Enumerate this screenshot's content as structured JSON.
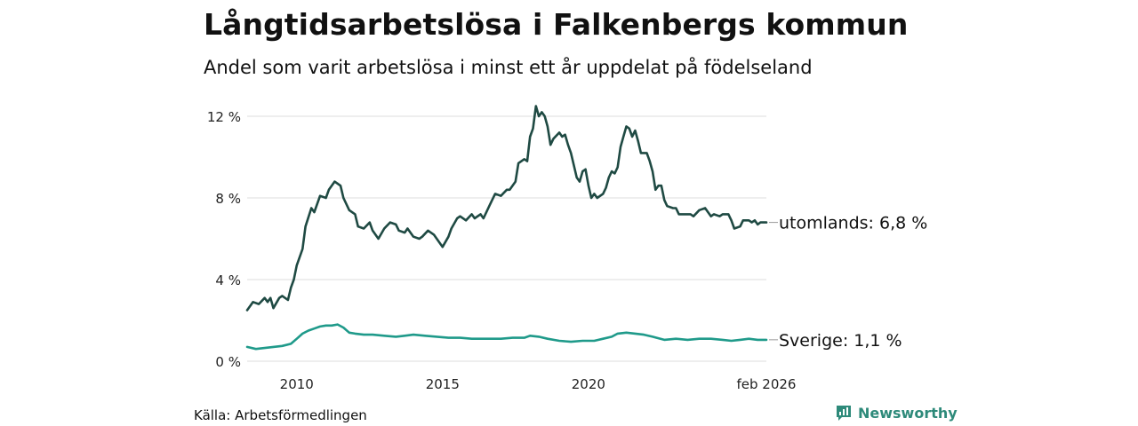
{
  "header": {
    "title": "Långtidsarbetslösa i Falkenbergs kommun",
    "subtitle": "Andel som varit arbetslösa i minst ett år uppdelat på födelseland"
  },
  "footer": {
    "source": "Källa: Arbetsförmedlingen",
    "brand": "Newsworthy"
  },
  "colors": {
    "utomlands": "#1f4a43",
    "sverige": "#1f9a8a",
    "grid": "#dddddd",
    "brand": "#2e8a7a"
  },
  "chart_data": {
    "type": "line",
    "title": "Långtidsarbetslösa i Falkenbergs kommun",
    "subtitle": "Andel som varit arbetslösa i minst ett år uppdelat på födelseland",
    "xlim": [
      2008.3,
      2026.1
    ],
    "ylim": [
      0,
      12
    ],
    "yticks": [
      {
        "value": 0,
        "label": "0 %"
      },
      {
        "value": 4,
        "label": "4 %"
      },
      {
        "value": 8,
        "label": "8 %"
      },
      {
        "value": 12,
        "label": "12 %"
      }
    ],
    "xticks": [
      {
        "value": 2010,
        "label": "2010"
      },
      {
        "value": 2015,
        "label": "2015"
      },
      {
        "value": 2020,
        "label": "2020"
      },
      {
        "value": 2026.1,
        "label": "feb 2026"
      }
    ],
    "grid": true,
    "series": [
      {
        "name": "utomlands",
        "end_label": "utomlands: 6,8 %",
        "points": [
          [
            2008.3,
            2.5
          ],
          [
            2008.5,
            2.9
          ],
          [
            2008.7,
            2.8
          ],
          [
            2008.9,
            3.1
          ],
          [
            2009.0,
            2.9
          ],
          [
            2009.1,
            3.1
          ],
          [
            2009.2,
            2.6
          ],
          [
            2009.4,
            3.1
          ],
          [
            2009.5,
            3.2
          ],
          [
            2009.7,
            3.0
          ],
          [
            2009.8,
            3.6
          ],
          [
            2009.9,
            4.0
          ],
          [
            2010.0,
            4.7
          ],
          [
            2010.2,
            5.5
          ],
          [
            2010.3,
            6.6
          ],
          [
            2010.5,
            7.5
          ],
          [
            2010.6,
            7.3
          ],
          [
            2010.8,
            8.1
          ],
          [
            2011.0,
            8.0
          ],
          [
            2011.1,
            8.4
          ],
          [
            2011.3,
            8.8
          ],
          [
            2011.5,
            8.6
          ],
          [
            2011.6,
            8.0
          ],
          [
            2011.8,
            7.4
          ],
          [
            2012.0,
            7.2
          ],
          [
            2012.1,
            6.6
          ],
          [
            2012.3,
            6.5
          ],
          [
            2012.5,
            6.8
          ],
          [
            2012.6,
            6.4
          ],
          [
            2012.8,
            6.0
          ],
          [
            2013.0,
            6.5
          ],
          [
            2013.2,
            6.8
          ],
          [
            2013.4,
            6.7
          ],
          [
            2013.5,
            6.4
          ],
          [
            2013.7,
            6.3
          ],
          [
            2013.8,
            6.5
          ],
          [
            2014.0,
            6.1
          ],
          [
            2014.2,
            6.0
          ],
          [
            2014.3,
            6.1
          ],
          [
            2014.5,
            6.4
          ],
          [
            2014.7,
            6.2
          ],
          [
            2014.9,
            5.8
          ],
          [
            2015.0,
            5.6
          ],
          [
            2015.2,
            6.1
          ],
          [
            2015.3,
            6.5
          ],
          [
            2015.5,
            7.0
          ],
          [
            2015.6,
            7.1
          ],
          [
            2015.8,
            6.9
          ],
          [
            2016.0,
            7.2
          ],
          [
            2016.1,
            7.0
          ],
          [
            2016.3,
            7.2
          ],
          [
            2016.4,
            7.0
          ],
          [
            2016.6,
            7.6
          ],
          [
            2016.8,
            8.2
          ],
          [
            2017.0,
            8.1
          ],
          [
            2017.2,
            8.4
          ],
          [
            2017.3,
            8.4
          ],
          [
            2017.5,
            8.8
          ],
          [
            2017.6,
            9.7
          ],
          [
            2017.8,
            9.9
          ],
          [
            2017.9,
            9.8
          ],
          [
            2018.0,
            11.0
          ],
          [
            2018.1,
            11.4
          ],
          [
            2018.2,
            12.5
          ],
          [
            2018.3,
            12.0
          ],
          [
            2018.4,
            12.2
          ],
          [
            2018.5,
            12.0
          ],
          [
            2018.6,
            11.5
          ],
          [
            2018.7,
            10.6
          ],
          [
            2018.8,
            10.9
          ],
          [
            2019.0,
            11.2
          ],
          [
            2019.1,
            11.0
          ],
          [
            2019.2,
            11.1
          ],
          [
            2019.3,
            10.6
          ],
          [
            2019.4,
            10.2
          ],
          [
            2019.6,
            9.0
          ],
          [
            2019.7,
            8.8
          ],
          [
            2019.8,
            9.3
          ],
          [
            2019.9,
            9.4
          ],
          [
            2020.0,
            8.6
          ],
          [
            2020.1,
            8.0
          ],
          [
            2020.2,
            8.2
          ],
          [
            2020.3,
            8.0
          ],
          [
            2020.5,
            8.2
          ],
          [
            2020.6,
            8.5
          ],
          [
            2020.7,
            9.0
          ],
          [
            2020.8,
            9.3
          ],
          [
            2020.9,
            9.2
          ],
          [
            2021.0,
            9.5
          ],
          [
            2021.1,
            10.5
          ],
          [
            2021.2,
            11.0
          ],
          [
            2021.3,
            11.5
          ],
          [
            2021.4,
            11.4
          ],
          [
            2021.5,
            11.0
          ],
          [
            2021.6,
            11.3
          ],
          [
            2021.7,
            10.8
          ],
          [
            2021.8,
            10.2
          ],
          [
            2022.0,
            10.2
          ],
          [
            2022.1,
            9.8
          ],
          [
            2022.2,
            9.3
          ],
          [
            2022.3,
            8.4
          ],
          [
            2022.4,
            8.6
          ],
          [
            2022.5,
            8.6
          ],
          [
            2022.6,
            7.9
          ],
          [
            2022.7,
            7.6
          ],
          [
            2022.9,
            7.5
          ],
          [
            2023.0,
            7.5
          ],
          [
            2023.1,
            7.2
          ],
          [
            2023.3,
            7.2
          ],
          [
            2023.5,
            7.2
          ],
          [
            2023.6,
            7.1
          ],
          [
            2023.8,
            7.4
          ],
          [
            2024.0,
            7.5
          ],
          [
            2024.1,
            7.3
          ],
          [
            2024.2,
            7.1
          ],
          [
            2024.3,
            7.2
          ],
          [
            2024.5,
            7.1
          ],
          [
            2024.6,
            7.2
          ],
          [
            2024.8,
            7.2
          ],
          [
            2024.9,
            6.9
          ],
          [
            2025.0,
            6.5
          ],
          [
            2025.2,
            6.6
          ],
          [
            2025.3,
            6.9
          ],
          [
            2025.5,
            6.9
          ],
          [
            2025.6,
            6.8
          ],
          [
            2025.7,
            6.9
          ],
          [
            2025.8,
            6.7
          ],
          [
            2025.9,
            6.8
          ],
          [
            2026.1,
            6.8
          ]
        ]
      },
      {
        "name": "Sverige",
        "end_label": "Sverige: 1,1 %",
        "points": [
          [
            2008.3,
            0.7
          ],
          [
            2008.6,
            0.6
          ],
          [
            2008.9,
            0.65
          ],
          [
            2009.2,
            0.7
          ],
          [
            2009.5,
            0.75
          ],
          [
            2009.8,
            0.85
          ],
          [
            2010.0,
            1.1
          ],
          [
            2010.2,
            1.35
          ],
          [
            2010.4,
            1.5
          ],
          [
            2010.6,
            1.6
          ],
          [
            2010.8,
            1.7
          ],
          [
            2011.0,
            1.75
          ],
          [
            2011.2,
            1.75
          ],
          [
            2011.4,
            1.8
          ],
          [
            2011.6,
            1.65
          ],
          [
            2011.8,
            1.4
          ],
          [
            2012.0,
            1.35
          ],
          [
            2012.3,
            1.3
          ],
          [
            2012.6,
            1.3
          ],
          [
            2013.0,
            1.25
          ],
          [
            2013.4,
            1.2
          ],
          [
            2013.7,
            1.25
          ],
          [
            2014.0,
            1.3
          ],
          [
            2014.4,
            1.25
          ],
          [
            2014.8,
            1.2
          ],
          [
            2015.2,
            1.15
          ],
          [
            2015.6,
            1.15
          ],
          [
            2016.0,
            1.1
          ],
          [
            2016.5,
            1.1
          ],
          [
            2017.0,
            1.1
          ],
          [
            2017.4,
            1.15
          ],
          [
            2017.8,
            1.15
          ],
          [
            2018.0,
            1.25
          ],
          [
            2018.3,
            1.2
          ],
          [
            2018.6,
            1.1
          ],
          [
            2019.0,
            1.0
          ],
          [
            2019.4,
            0.95
          ],
          [
            2019.8,
            1.0
          ],
          [
            2020.2,
            1.0
          ],
          [
            2020.5,
            1.1
          ],
          [
            2020.8,
            1.2
          ],
          [
            2021.0,
            1.35
          ],
          [
            2021.3,
            1.4
          ],
          [
            2021.6,
            1.35
          ],
          [
            2021.9,
            1.3
          ],
          [
            2022.2,
            1.2
          ],
          [
            2022.6,
            1.05
          ],
          [
            2023.0,
            1.1
          ],
          [
            2023.4,
            1.05
          ],
          [
            2023.8,
            1.1
          ],
          [
            2024.2,
            1.1
          ],
          [
            2024.6,
            1.05
          ],
          [
            2024.9,
            1.0
          ],
          [
            2025.2,
            1.05
          ],
          [
            2025.5,
            1.1
          ],
          [
            2025.8,
            1.05
          ],
          [
            2026.1,
            1.05
          ]
        ]
      }
    ]
  }
}
